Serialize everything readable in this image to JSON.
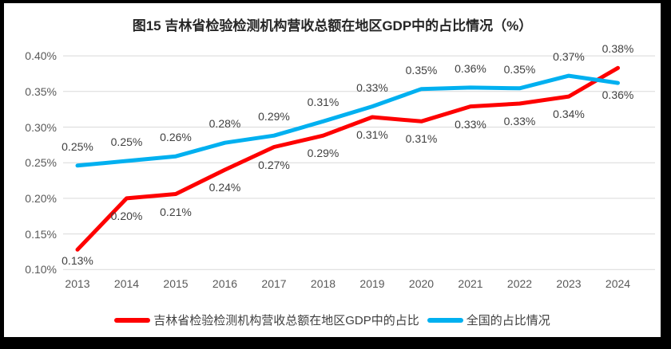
{
  "chart_data": {
    "type": "line",
    "title": "图15 吉林省检验检测机构营收总额在地区GDP中的占比情况（%）",
    "x": [
      "2013",
      "2014",
      "2015",
      "2016",
      "2017",
      "2018",
      "2019",
      "2020",
      "2021",
      "2022",
      "2023",
      "2024"
    ],
    "y_axis": {
      "ticks": [
        "0.40%",
        "0.35%",
        "0.30%",
        "0.25%",
        "0.20%",
        "0.15%",
        "0.10%"
      ],
      "tick_values": [
        0.4,
        0.35,
        0.3,
        0.25,
        0.2,
        0.15,
        0.1
      ],
      "ylim": [
        0.1,
        0.4
      ],
      "grid": true,
      "grid_color": "#D9D9D9"
    },
    "series": [
      {
        "name": "吉林省检验检测机构营收总额在地区GDP中的占比",
        "color": "#FE0000",
        "values": [
          0.128,
          0.2,
          0.206,
          0.24,
          0.272,
          0.288,
          0.314,
          0.308,
          0.329,
          0.333,
          0.343,
          0.383
        ],
        "labels": [
          "0.13%",
          "0.20%",
          "0.21%",
          "0.24%",
          "0.27%",
          "0.29%",
          "0.31%",
          "0.31%",
          "0.33%",
          "0.33%",
          "0.34%",
          "0.38%"
        ],
        "label_pos": [
          "below:14",
          "below",
          "below",
          "below",
          "below",
          "below",
          "below",
          "below",
          "below",
          "below",
          "below",
          "above"
        ]
      },
      {
        "name": "全国的占比情况",
        "color": "#00B0F0",
        "values": [
          0.246,
          0.2525,
          0.259,
          0.278,
          0.288,
          0.308,
          0.329,
          0.3535,
          0.3555,
          0.3545,
          0.372,
          0.362
        ],
        "labels": [
          "0.25%",
          "0.25%",
          "0.26%",
          "0.28%",
          "0.29%",
          "0.31%",
          "0.33%",
          "0.35%",
          "0.36%",
          "0.35%",
          "0.37%",
          "0.36%"
        ],
        "label_pos": [
          "above",
          "above",
          "above",
          "above",
          "above",
          "above",
          "above",
          "above",
          "above",
          "above",
          "above",
          "below:15"
        ]
      }
    ],
    "legend_position": "bottom",
    "line_width": 5
  }
}
